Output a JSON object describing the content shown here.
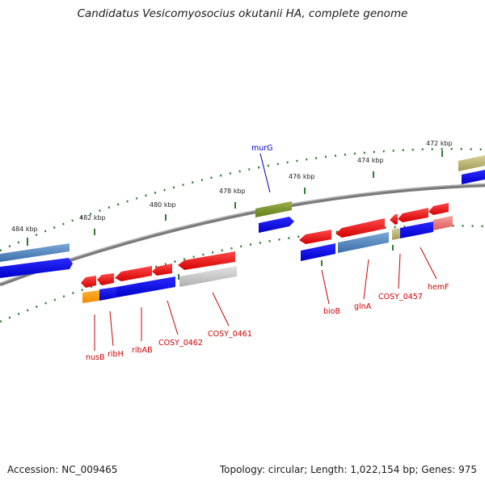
{
  "title": "Candidatus Vesicomyosocius okutanii HA, complete genome",
  "footer": {
    "accession": "Accession: NC_009465",
    "topology": "Topology: circular; Length: 1,022,154 bp; Genes: 975"
  },
  "colors": {
    "backbone": "#808080",
    "tick": "#2e7d32",
    "forward_gene": "#ee1111",
    "reverse_gene": "#1111dd",
    "label_red": "#cc0000",
    "label_blue": "#0000cc"
  },
  "scale_labels": [
    "484 kbp",
    "482 kbp",
    "480 kbp",
    "478 kbp",
    "476 kbp",
    "474 kbp",
    "472 kbp"
  ],
  "gene_labels": [
    "murG",
    "nusB",
    "ribH",
    "ribAB",
    "COSY_0462",
    "COSY_0461",
    "bioB",
    "glnA",
    "COSY_0457",
    "hemF"
  ]
}
